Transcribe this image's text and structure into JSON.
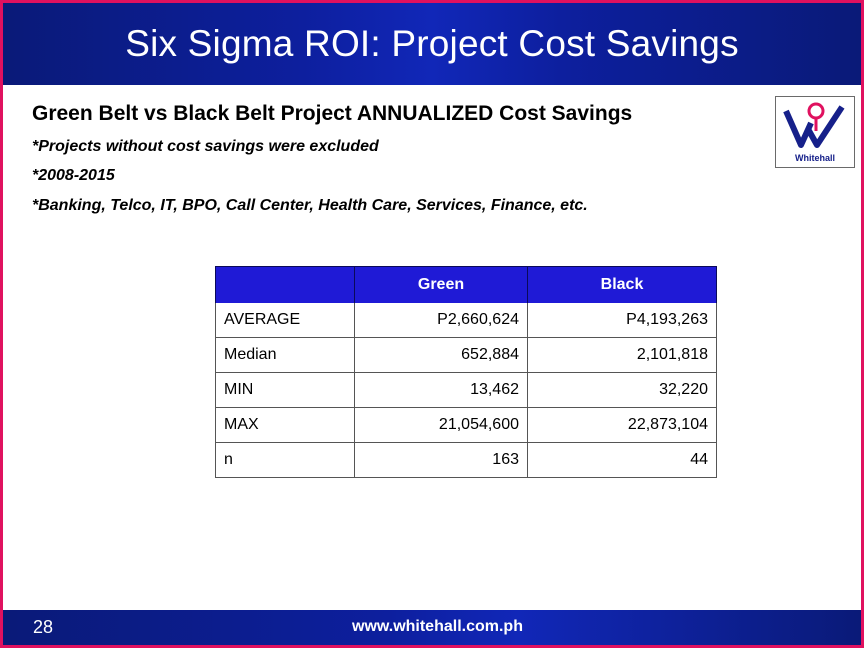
{
  "header": {
    "title": "Six Sigma ROI: Project Cost Savings"
  },
  "content": {
    "subtitle": "Green Belt vs Black Belt Project ANNUALIZED Cost Savings",
    "notes": [
      "*Projects without cost savings were excluded",
      "*2008-2015",
      "*Banking, Telco, IT, BPO, Call Center, Health Care, Services, Finance, etc."
    ]
  },
  "logo": {
    "text": "Whitehall",
    "icon": "whitehall-logo-icon",
    "color": "#16208a"
  },
  "table": {
    "columns": [
      "",
      "Green",
      "Black"
    ],
    "rows": [
      [
        "AVERAGE",
        "P2,660,624",
        "P4,193,263"
      ],
      [
        "Median",
        "652,884",
        "2,101,818"
      ],
      [
        "MIN",
        "13,462",
        "32,220"
      ],
      [
        "MAX",
        "21,054,600",
        "22,873,104"
      ],
      [
        "n",
        "163",
        "44"
      ]
    ],
    "header_color": "#1f1ad6"
  },
  "footer": {
    "page_number": "28",
    "url": "www.whitehall.com.ph"
  },
  "colors": {
    "header_bg": "#0d1f9e",
    "border": "#e0115f"
  }
}
